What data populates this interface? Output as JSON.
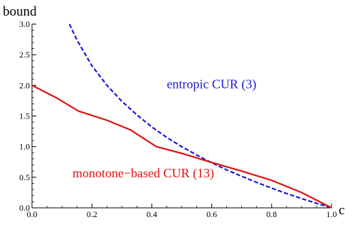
{
  "chart_data": {
    "type": "line",
    "xlabel": "c",
    "ylabel": "bound",
    "xlim": [
      0.0,
      1.0
    ],
    "ylim": [
      0.0,
      3.0
    ],
    "xticks": [
      "0.0",
      "0.2",
      "0.4",
      "0.6",
      "0.8",
      "1.0"
    ],
    "yticks": [
      "0.0",
      "0.5",
      "1.0",
      "1.5",
      "2.0",
      "2.5",
      "3.0"
    ],
    "grid": false,
    "series": [
      {
        "name": "entropic CUR (3)",
        "color": "#1a1adb",
        "style": "dashed",
        "x": [
          0.125,
          0.15,
          0.2,
          0.25,
          0.3,
          0.35,
          0.4,
          0.45,
          0.5,
          0.55,
          0.6,
          0.65,
          0.7,
          0.75,
          0.8,
          0.85,
          0.9,
          0.95,
          1.0
        ],
        "y": [
          3.0,
          2.74,
          2.32,
          2.0,
          1.74,
          1.52,
          1.32,
          1.15,
          0.998,
          0.862,
          0.737,
          0.62,
          0.515,
          0.415,
          0.322,
          0.234,
          0.152,
          0.074,
          0.0
        ]
      },
      {
        "name": "monotone-based CUR (13)",
        "color": "#e01010",
        "style": "solid",
        "x": [
          0.0,
          0.08,
          0.155,
          0.25,
          0.33,
          0.415,
          0.5,
          0.6,
          0.7,
          0.8,
          0.9,
          1.0
        ],
        "y": [
          2.0,
          1.8,
          1.58,
          1.43,
          1.27,
          1.0,
          0.89,
          0.74,
          0.6,
          0.45,
          0.25,
          0.0
        ]
      }
    ],
    "annotations": [
      {
        "text": "entropic CUR (3)",
        "series": 0,
        "at": [
          0.45,
          1.95
        ]
      },
      {
        "text": "monotone−based CUR (13)",
        "series": 1,
        "at": [
          0.135,
          0.5
        ]
      }
    ]
  }
}
